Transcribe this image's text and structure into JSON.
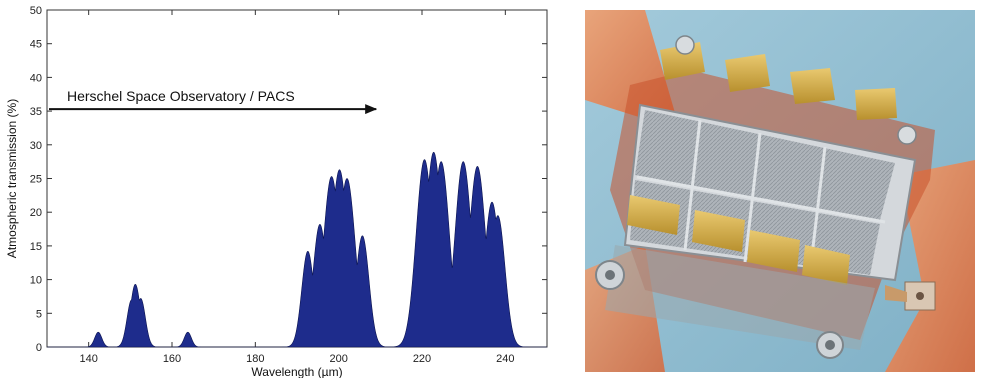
{
  "chart_data": {
    "type": "area",
    "title": "",
    "xlabel": "Wavelength (µm)",
    "ylabel": "Atmospheric transmission (%)",
    "xlim": [
      130,
      250
    ],
    "ylim": [
      0,
      50
    ],
    "xticks": [
      140,
      160,
      180,
      200,
      220,
      240
    ],
    "yticks": [
      0,
      5,
      10,
      15,
      20,
      25,
      30,
      35,
      40,
      45,
      50
    ],
    "grid": false,
    "fill_color": "#1e2c8c",
    "series": [
      {
        "peaks": [
          {
            "center": 142.3,
            "height": 2.2
          },
          {
            "center": 150.3,
            "height": 7.0
          },
          {
            "center": 151.2,
            "height": 9.3
          },
          {
            "center": 152.5,
            "height": 7.2
          },
          {
            "center": 163.8,
            "height": 2.2
          },
          {
            "center": 192.6,
            "height": 14.2
          },
          {
            "center": 195.5,
            "height": 18.2
          },
          {
            "center": 198.3,
            "height": 25.3
          },
          {
            "center": 200.2,
            "height": 26.3
          },
          {
            "center": 202.0,
            "height": 25.0
          },
          {
            "center": 205.7,
            "height": 16.5
          },
          {
            "center": 208.0,
            "height": 3.0
          },
          {
            "center": 220.6,
            "height": 27.8
          },
          {
            "center": 222.8,
            "height": 28.9
          },
          {
            "center": 224.6,
            "height": 27.5
          },
          {
            "center": 229.9,
            "height": 27.5
          },
          {
            "center": 233.3,
            "height": 26.8
          },
          {
            "center": 236.8,
            "height": 21.5
          },
          {
            "center": 238.2,
            "height": 19.5
          }
        ]
      }
    ],
    "annotation": {
      "text": "Herschel Space Observatory / PACS",
      "arrow_y": 35.3,
      "arrow_x_start": 130,
      "arrow_x_end": 209
    }
  },
  "photo": {
    "subject": "PACS bolometer detector array",
    "background_color": "#96bfd2"
  }
}
